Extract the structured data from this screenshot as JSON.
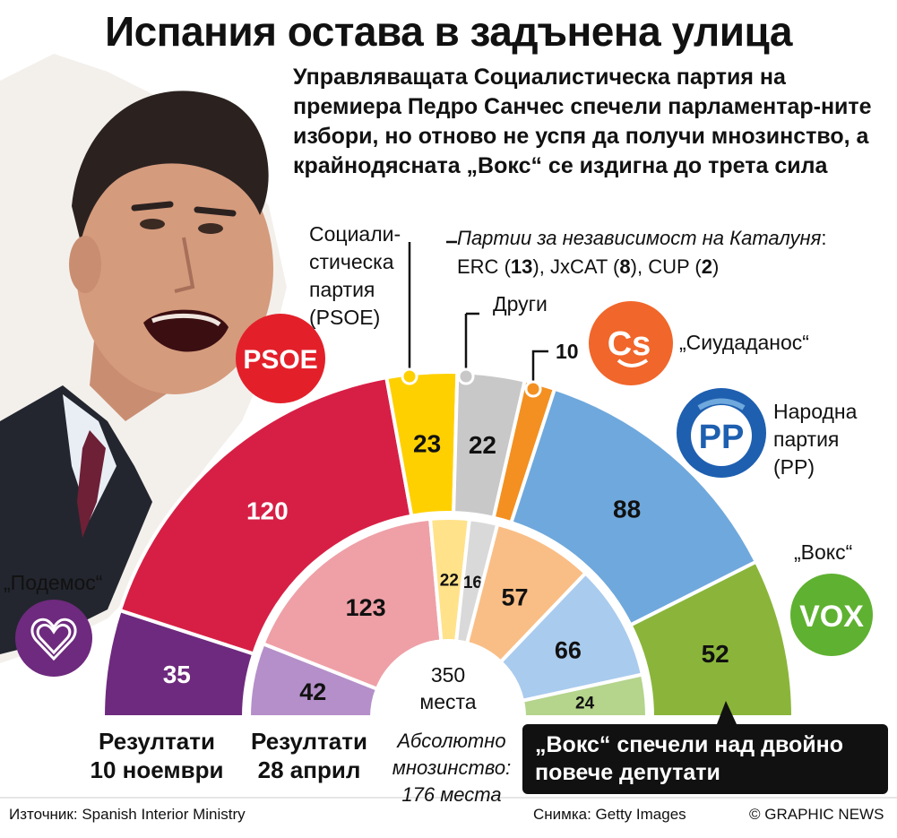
{
  "title": "Испания остава в задънена улица",
  "subtitle": "Управляващата Социалистическа партия на премиера Педро Санчес спечели парламентар-ните избори, но отново не успя да получи мнозинство, а крайнодясната „Вокс“ се издигна до трета сила",
  "labels": {
    "psoe": [
      "Социали-",
      "стическа",
      "партия",
      "(PSOE)"
    ],
    "catalan_title": "Партии за независимост на Каталуня",
    "catalan_colon": ":",
    "catalan_parties": [
      {
        "name": "ERC",
        "seats": "13"
      },
      {
        "name": "JxCAT",
        "seats": "8"
      },
      {
        "name": "CUP",
        "seats": "2"
      }
    ],
    "others": "Други",
    "cs_seats_label": "10",
    "cs": "„Сиудаданос“",
    "pp": [
      "Народна",
      "партия",
      "(PP)"
    ],
    "vox": "„Вокс“",
    "podemos": "„Подемос“"
  },
  "logos": {
    "psoe": "PSOE",
    "cs": "Cs",
    "pp": "PP",
    "vox": "VOX",
    "podemos": "heart-icon"
  },
  "center": {
    "total": "350",
    "unit": "места"
  },
  "results": {
    "november_label": [
      "Резултати",
      "10 ноември"
    ],
    "april_label": [
      "Резултати",
      "28 април"
    ]
  },
  "majority": [
    "Абсолютно",
    "мнозинство:",
    "176 места"
  ],
  "callout": [
    "„Вокс“ спечели над двойно",
    "повече депутати"
  ],
  "footer": {
    "source": "Източник: Spanish Interior Ministry",
    "photo": "Снимка: Getty Images",
    "credit": "© GRAPHIC NEWS"
  },
  "colors": {
    "podemos": "#6e2a7e",
    "psoe": "#d71f45",
    "catalan": "#ffd000",
    "others": "#c8c8c8",
    "cs": "#f39021",
    "pp": "#6fa8dc",
    "vox": "#8ab53a"
  },
  "chart_data": [
    {
      "type": "pie",
      "name": "Резултати 10 ноември",
      "total": 350,
      "categories": [
        "Podemos",
        "PSOE",
        "Catalan",
        "Others",
        "Cs",
        "PP",
        "Vox"
      ],
      "values": [
        35,
        120,
        23,
        22,
        10,
        88,
        52
      ],
      "colors": [
        "#6e2a7e",
        "#d71f45",
        "#ffd000",
        "#c8c8c8",
        "#f39021",
        "#6fa8dc",
        "#8ab53a"
      ],
      "labels_shown": [
        "35",
        "120",
        "23",
        "22",
        "",
        "88",
        "52"
      ]
    },
    {
      "type": "pie",
      "name": "Резултати 28 април",
      "total": 350,
      "categories": [
        "Podemos",
        "PSOE",
        "Catalan",
        "Others",
        "Cs",
        "PP",
        "Vox"
      ],
      "values": [
        42,
        123,
        22,
        16,
        57,
        66,
        24
      ],
      "colors": [
        "#b48fc9",
        "#eea0a6",
        "#ffe28a",
        "#d9d9d9",
        "#f9be86",
        "#a9cbee",
        "#b5d48c"
      ],
      "labels_shown": [
        "42",
        "123",
        "22",
        "16",
        "57",
        "66",
        "24"
      ]
    }
  ]
}
